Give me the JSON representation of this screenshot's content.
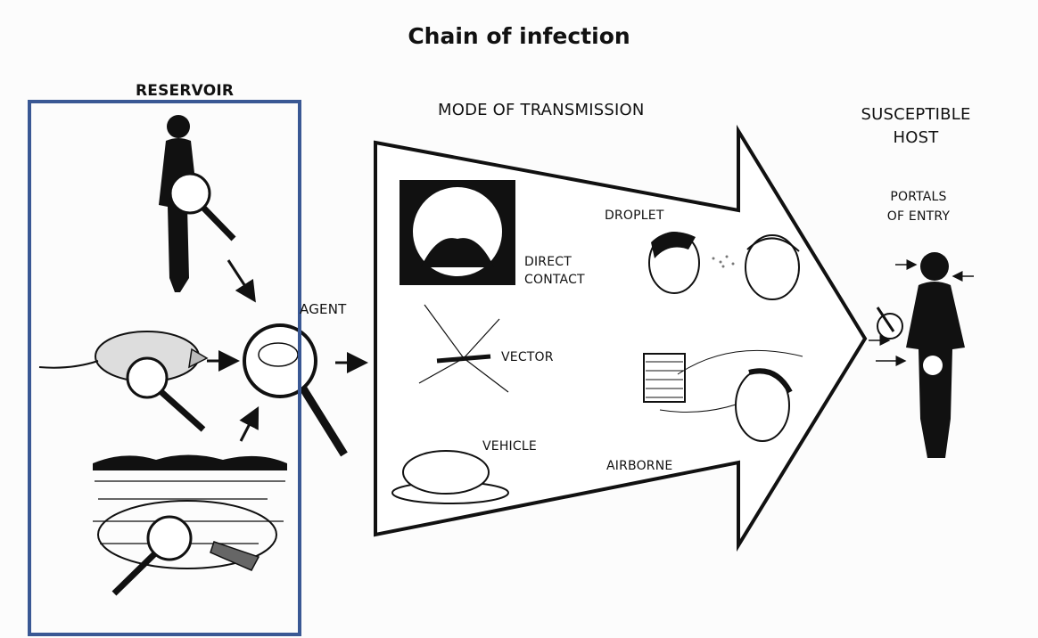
{
  "title": "Chain of infection",
  "sections": {
    "reservoir": "RESERVOIR",
    "agent": "AGENT",
    "mode_of_transmission": "MODE OF TRANSMISSION",
    "susceptible_host": "SUSCEPTIBLE HOST",
    "portals_of_entry": "PORTALS OF ENTRY"
  },
  "transmission_modes": {
    "direct_contact": "DIRECT CONTACT",
    "droplet": "DROPLET",
    "vector": "VECTOR",
    "vehicle": "VEHICLE",
    "airborne": "AIRBORNE"
  },
  "colors": {
    "ink": "#111111",
    "highlight_box": "#3a5894",
    "background": "#fcfcfc"
  }
}
